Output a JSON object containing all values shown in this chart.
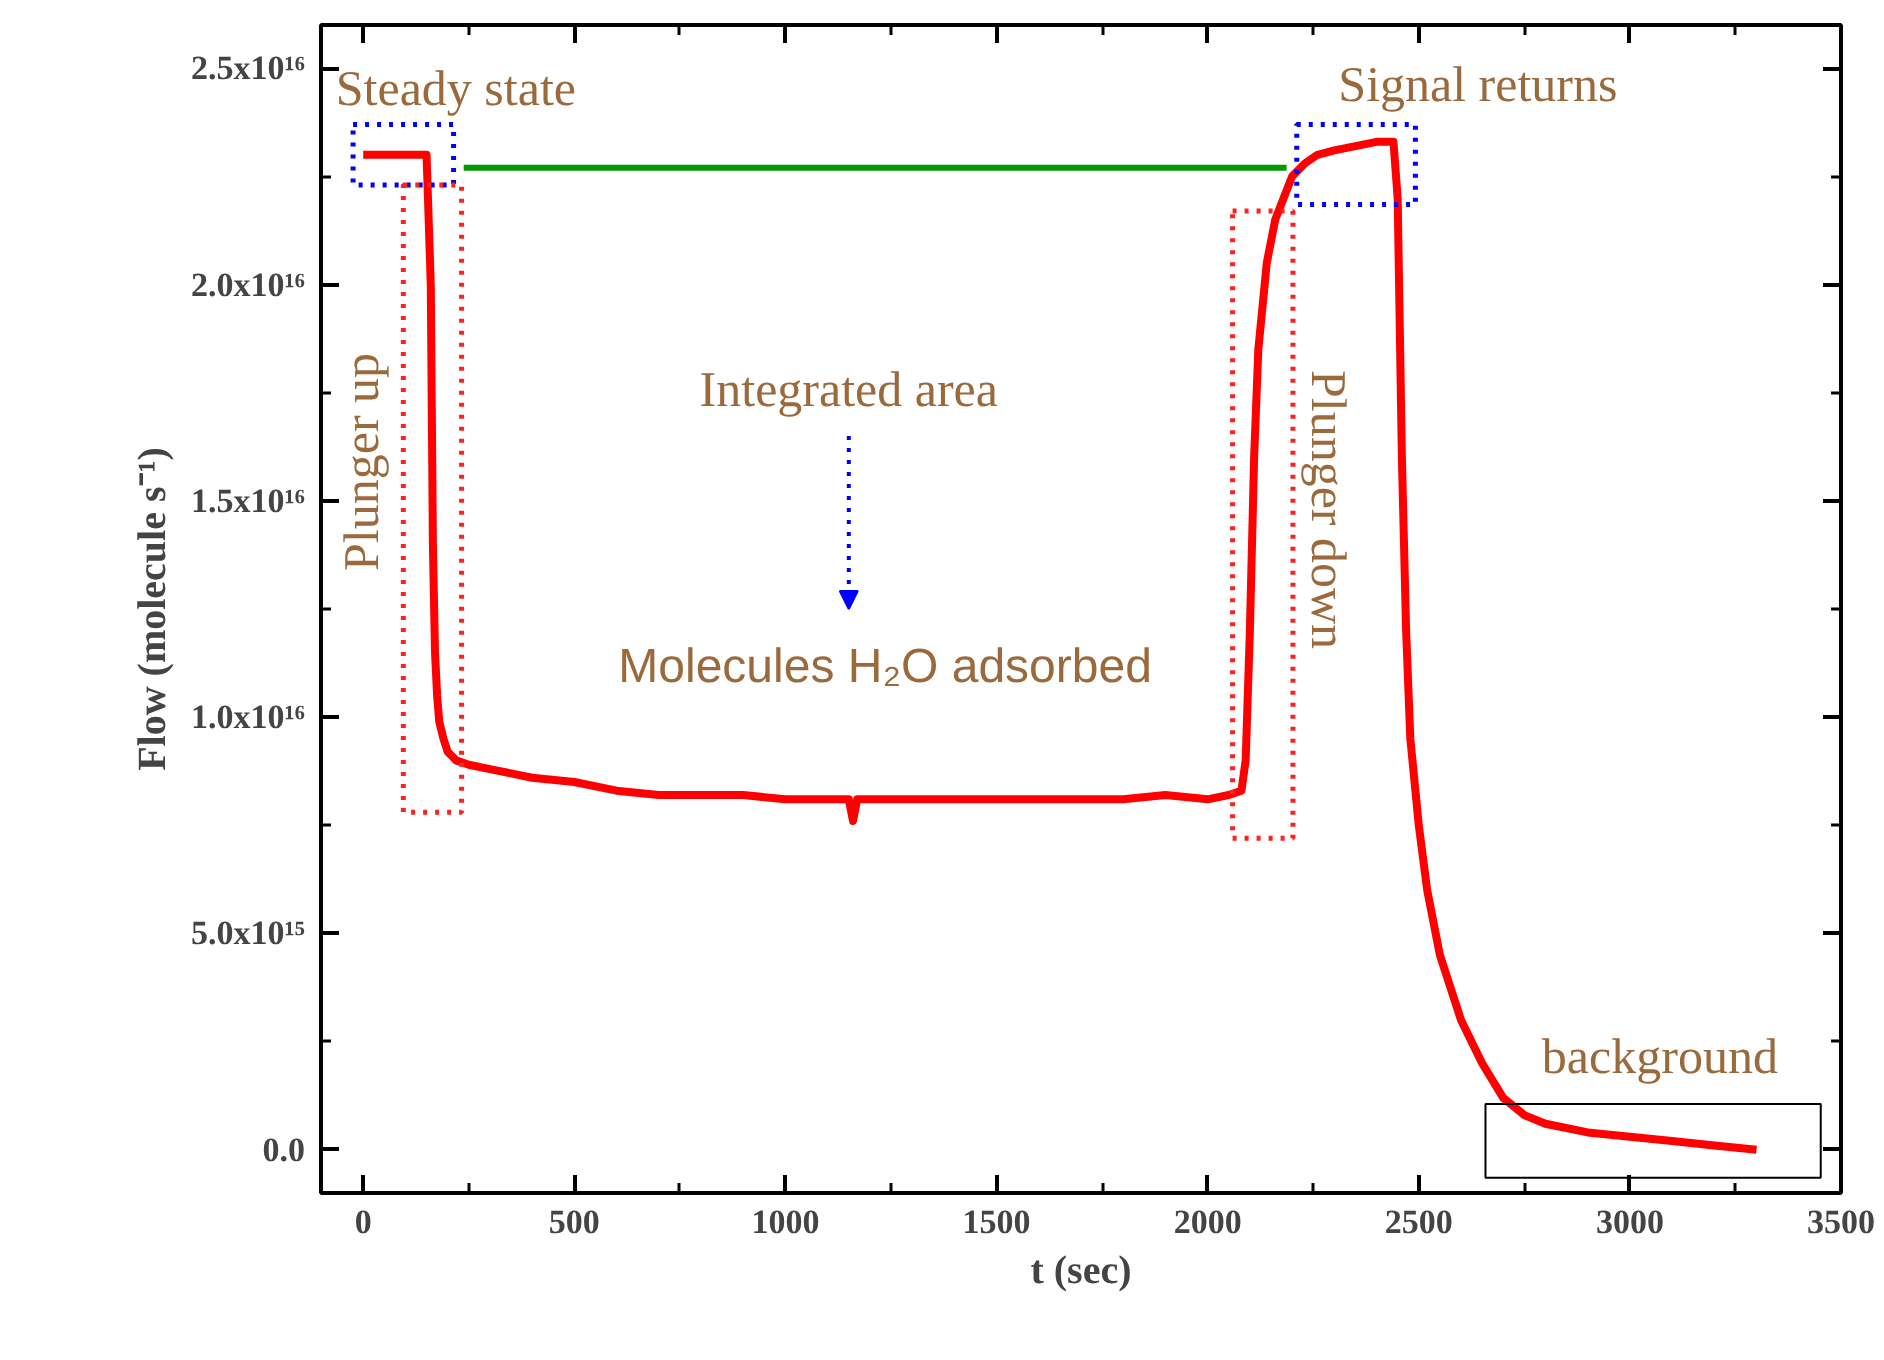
{
  "chart_data": {
    "type": "line",
    "xlabel": "t (sec)",
    "ylabel": "Flow (molecule s⁻¹)",
    "xlim": [
      -100,
      3500
    ],
    "ylim": [
      -1000000000000000.0,
      2.6e+16
    ],
    "xticks": [
      0,
      500,
      1000,
      1500,
      2000,
      2500,
      3000,
      3500
    ],
    "yticks": [
      {
        "value": 0,
        "label": "0.0"
      },
      {
        "value": 5000000000000000.0,
        "label": "5.0x10¹⁵"
      },
      {
        "value": 1e+16,
        "label": "1.0x10¹⁶"
      },
      {
        "value": 1.5e+16,
        "label": "1.5x10¹⁶"
      },
      {
        "value": 2e+16,
        "label": "2.0x10¹⁶"
      },
      {
        "value": 2.5e+16,
        "label": "2.5x10¹⁶"
      }
    ],
    "grid": false,
    "marker": "none",
    "line_style": "solid",
    "series": [
      {
        "color": "#ff0000",
        "x": [
          0,
          50,
          100,
          150,
          160,
          165,
          170,
          175,
          180,
          190,
          200,
          220,
          250,
          300,
          400,
          500,
          600,
          700,
          800,
          900,
          1000,
          1100,
          1150,
          1160,
          1170,
          1200,
          1300,
          1400,
          1500,
          1600,
          1700,
          1800,
          1900,
          2000,
          2050,
          2080,
          2090,
          2100,
          2110,
          2120,
          2140,
          2160,
          2180,
          2200,
          2230,
          2260,
          2300,
          2350,
          2400,
          2440,
          2450,
          2460,
          2470,
          2480,
          2500,
          2520,
          2550,
          2600,
          2650,
          2700,
          2750,
          2800,
          2900,
          3000,
          3100,
          3200,
          3300
        ],
        "values": [
          2.3e+16,
          2.3e+16,
          2.3e+16,
          2.3e+16,
          2e+16,
          1.4e+16,
          1.15e+16,
          1.05e+16,
          9900000000000000.0,
          9500000000000000.0,
          9200000000000000.0,
          9000000000000000.0,
          8900000000000000.0,
          8800000000000000.0,
          8600000000000000.0,
          8500000000000000.0,
          8300000000000000.0,
          8200000000000000.0,
          8200000000000000.0,
          8200000000000000.0,
          8100000000000000.0,
          8100000000000000.0,
          8100000000000000.0,
          7600000000000000.0,
          8100000000000000.0,
          8100000000000000.0,
          8100000000000000.0,
          8100000000000000.0,
          8100000000000000.0,
          8100000000000000.0,
          8100000000000000.0,
          8100000000000000.0,
          8200000000000000.0,
          8100000000000000.0,
          8200000000000000.0,
          8300000000000000.0,
          9000000000000000.0,
          1.2e+16,
          1.6e+16,
          1.85e+16,
          2.05e+16,
          2.15e+16,
          2.2e+16,
          2.25e+16,
          2.28e+16,
          2.3e+16,
          2.31e+16,
          2.32e+16,
          2.33e+16,
          2.33e+16,
          2.2e+16,
          1.6e+16,
          1.2e+16,
          9500000000000000.0,
          7500000000000000.0,
          6000000000000000.0,
          4500000000000000.0,
          3000000000000000.0,
          2000000000000000.0,
          1200000000000000.0,
          800000000000000.0,
          600000000000000.0,
          400000000000000.0,
          300000000000000.0,
          200000000000000.0,
          100000000000000.0,
          0.0
        ]
      },
      {
        "color": "#009900",
        "x": [
          238,
          2187
        ],
        "values": [
          2.27e+16,
          2.27e+16
        ]
      }
    ],
    "annotations": [
      "Steady state",
      "Plunger up",
      "Integrated area",
      "Molecules H₂O adsorbed",
      "Plunger down",
      "Signal returns",
      "background"
    ]
  }
}
